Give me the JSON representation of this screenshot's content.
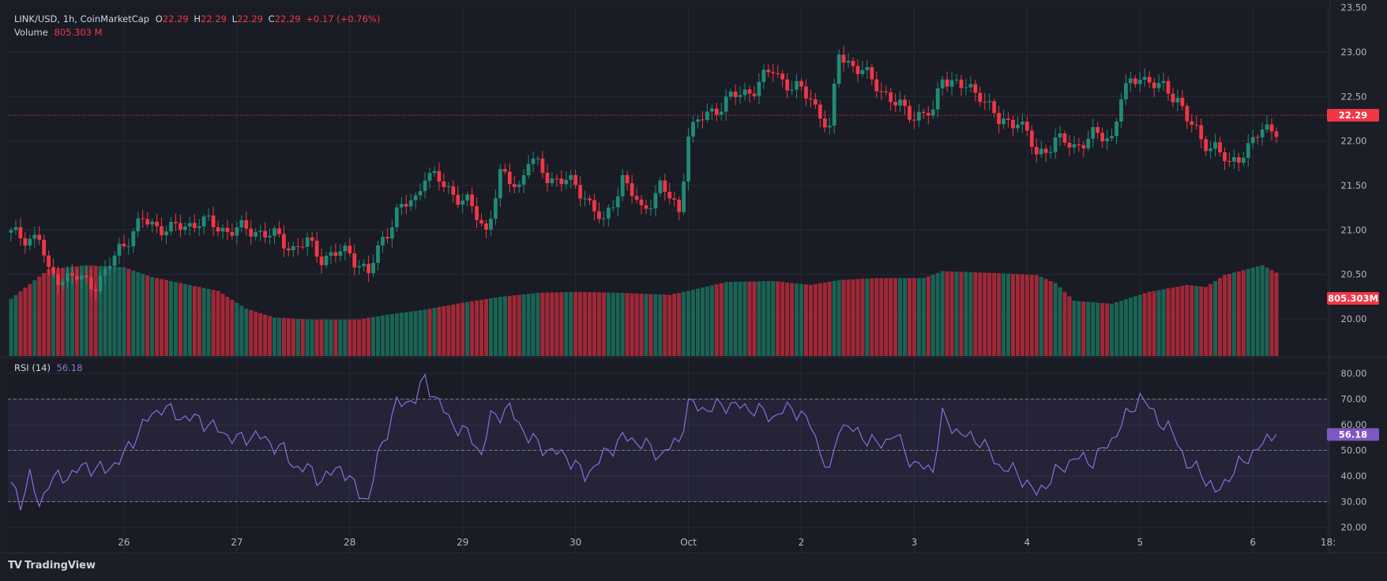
{
  "colors": {
    "background": "#1b1e27",
    "grid": "#262a35",
    "up": "#1f8b76",
    "down": "#f23645",
    "up_volume": "#1b6b5b",
    "down_volume": "#b02a3a",
    "rsi_line": "#8e6cd8",
    "rsi_band": "#7e57c2",
    "text": "#d1d4dc",
    "axis_text": "#b2b5be",
    "price_tag": "#f23645",
    "rsi_tag": "#7e57c2"
  },
  "legend": {
    "symbol": "LINK/USD, 1h, CoinMarketCap",
    "o_label": "O",
    "o_value": "22.29",
    "h_label": "H",
    "h_value": "22.29",
    "l_label": "L",
    "l_value": "22.29",
    "c_label": "C",
    "c_value": "22.29",
    "change": "+0.17 (+0.76%)",
    "volume_label": "Volume",
    "volume_value": "805.303 M",
    "rsi_label": "RSI (14)",
    "rsi_value": "56.18"
  },
  "tags": {
    "price": "22.29",
    "volume": "805.303M",
    "rsi": "56.18"
  },
  "brand": {
    "logo": "TV",
    "name": "TradingView"
  },
  "chart_data": [
    {
      "type": "candlestick",
      "title": "LINK/USD, 1h, CoinMarketCap",
      "ylim": [
        19.5,
        23.5
      ],
      "y_ticks": [
        "20.00",
        "20.50",
        "21.00",
        "21.50",
        "22.00",
        "22.50",
        "23.00",
        "23.50"
      ],
      "y_tick_values": [
        20.0,
        20.5,
        21.0,
        21.5,
        22.0,
        22.5,
        23.0,
        23.5
      ],
      "x_ticks": [
        "26",
        "27",
        "28",
        "29",
        "30",
        "Oct",
        "2",
        "3",
        "4",
        "5",
        "6",
        "18:"
      ],
      "x_tick_index": [
        24,
        48,
        72,
        96,
        120,
        144,
        168,
        192,
        216,
        240,
        264,
        280
      ],
      "current_price": 22.29,
      "anchors": [
        [
          0,
          20.95
        ],
        [
          6,
          20.9
        ],
        [
          8,
          20.5
        ],
        [
          14,
          20.45
        ],
        [
          18,
          20.4
        ],
        [
          20,
          20.5
        ],
        [
          23,
          20.8
        ],
        [
          28,
          21.1
        ],
        [
          34,
          21.0
        ],
        [
          40,
          21.1
        ],
        [
          46,
          21.0
        ],
        [
          52,
          21.0
        ],
        [
          57,
          20.9
        ],
        [
          60,
          20.8
        ],
        [
          63,
          20.85
        ],
        [
          66,
          20.7
        ],
        [
          72,
          20.75
        ],
        [
          76,
          20.5
        ],
        [
          79,
          20.9
        ],
        [
          82,
          21.2
        ],
        [
          86,
          21.35
        ],
        [
          88,
          21.65
        ],
        [
          92,
          21.5
        ],
        [
          97,
          21.3
        ],
        [
          101,
          21.0
        ],
        [
          104,
          21.6
        ],
        [
          108,
          21.5
        ],
        [
          110,
          21.8
        ],
        [
          114,
          21.6
        ],
        [
          118,
          21.55
        ],
        [
          122,
          21.4
        ],
        [
          126,
          21.05
        ],
        [
          130,
          21.6
        ],
        [
          134,
          21.2
        ],
        [
          138,
          21.5
        ],
        [
          142,
          21.2
        ],
        [
          144,
          22.1
        ],
        [
          148,
          22.3
        ],
        [
          152,
          22.45
        ],
        [
          158,
          22.6
        ],
        [
          162,
          22.8
        ],
        [
          166,
          22.6
        ],
        [
          170,
          22.5
        ],
        [
          174,
          22.1
        ],
        [
          176,
          23.0
        ],
        [
          180,
          22.8
        ],
        [
          184,
          22.65
        ],
        [
          188,
          22.4
        ],
        [
          192,
          22.3
        ],
        [
          196,
          22.3
        ],
        [
          198,
          22.75
        ],
        [
          202,
          22.6
        ],
        [
          206,
          22.55
        ],
        [
          210,
          22.2
        ],
        [
          214,
          22.25
        ],
        [
          218,
          21.85
        ],
        [
          222,
          22.0
        ],
        [
          226,
          21.95
        ],
        [
          230,
          22.05
        ],
        [
          234,
          22.05
        ],
        [
          236,
          22.5
        ],
        [
          240,
          22.75
        ],
        [
          244,
          22.6
        ],
        [
          248,
          22.5
        ],
        [
          250,
          22.25
        ],
        [
          253,
          22.0
        ],
        [
          256,
          21.95
        ],
        [
          259,
          21.7
        ],
        [
          262,
          21.9
        ],
        [
          266,
          22.1
        ],
        [
          268,
          22.15
        ]
      ],
      "volume": {
        "unit": "M",
        "ylim": [
          0,
          2000
        ],
        "last_value": 805.303,
        "anchors": [
          [
            0,
            580
          ],
          [
            8,
            880
          ],
          [
            16,
            920
          ],
          [
            24,
            900
          ],
          [
            30,
            800
          ],
          [
            38,
            720
          ],
          [
            44,
            660
          ],
          [
            50,
            480
          ],
          [
            56,
            390
          ],
          [
            64,
            370
          ],
          [
            74,
            370
          ],
          [
            80,
            420
          ],
          [
            88,
            470
          ],
          [
            96,
            540
          ],
          [
            104,
            600
          ],
          [
            112,
            640
          ],
          [
            120,
            650
          ],
          [
            130,
            640
          ],
          [
            140,
            620
          ],
          [
            144,
            660
          ],
          [
            152,
            750
          ],
          [
            162,
            760
          ],
          [
            170,
            720
          ],
          [
            176,
            770
          ],
          [
            184,
            790
          ],
          [
            194,
            790
          ],
          [
            198,
            860
          ],
          [
            210,
            840
          ],
          [
            218,
            820
          ],
          [
            222,
            740
          ],
          [
            226,
            560
          ],
          [
            234,
            530
          ],
          [
            242,
            650
          ],
          [
            250,
            720
          ],
          [
            254,
            700
          ],
          [
            258,
            820
          ],
          [
            266,
            920
          ],
          [
            270,
            820
          ]
        ]
      }
    },
    {
      "type": "line",
      "title": "RSI (14)",
      "ylim": [
        17.5,
        82.5
      ],
      "y_ticks": [
        "20.00",
        "30.00",
        "40.00",
        "50.00",
        "60.00",
        "70.00",
        "80.00"
      ],
      "y_tick_values": [
        20,
        30,
        40,
        50,
        60,
        70,
        80
      ],
      "bands": {
        "upper": 70,
        "middle": 50,
        "lower": 30
      },
      "last_value": 56.18,
      "anchors": [
        [
          0,
          36
        ],
        [
          2,
          30
        ],
        [
          4,
          40
        ],
        [
          6,
          28
        ],
        [
          8,
          38
        ],
        [
          12,
          40
        ],
        [
          16,
          44
        ],
        [
          20,
          42
        ],
        [
          24,
          48
        ],
        [
          28,
          60
        ],
        [
          32,
          67
        ],
        [
          36,
          63
        ],
        [
          40,
          62
        ],
        [
          44,
          58
        ],
        [
          48,
          54
        ],
        [
          52,
          56
        ],
        [
          56,
          52
        ],
        [
          58,
          50
        ],
        [
          60,
          44
        ],
        [
          64,
          42
        ],
        [
          66,
          38
        ],
        [
          70,
          44
        ],
        [
          72,
          38
        ],
        [
          76,
          30
        ],
        [
          78,
          48
        ],
        [
          82,
          68
        ],
        [
          86,
          70
        ],
        [
          88,
          78
        ],
        [
          90,
          71
        ],
        [
          94,
          60
        ],
        [
          98,
          55
        ],
        [
          100,
          48
        ],
        [
          102,
          63
        ],
        [
          106,
          66
        ],
        [
          110,
          55
        ],
        [
          114,
          50
        ],
        [
          118,
          48
        ],
        [
          122,
          40
        ],
        [
          126,
          48
        ],
        [
          130,
          55
        ],
        [
          134,
          53
        ],
        [
          138,
          48
        ],
        [
          142,
          54
        ],
        [
          144,
          68
        ],
        [
          148,
          66
        ],
        [
          152,
          68
        ],
        [
          158,
          66
        ],
        [
          162,
          63
        ],
        [
          166,
          67
        ],
        [
          170,
          60
        ],
        [
          174,
          40
        ],
        [
          176,
          60
        ],
        [
          180,
          57
        ],
        [
          184,
          52
        ],
        [
          188,
          56
        ],
        [
          192,
          44
        ],
        [
          196,
          43
        ],
        [
          198,
          63
        ],
        [
          202,
          56
        ],
        [
          206,
          54
        ],
        [
          210,
          44
        ],
        [
          214,
          41
        ],
        [
          218,
          33
        ],
        [
          222,
          41
        ],
        [
          226,
          47
        ],
        [
          230,
          46
        ],
        [
          234,
          54
        ],
        [
          236,
          60
        ],
        [
          240,
          71
        ],
        [
          244,
          62
        ],
        [
          248,
          54
        ],
        [
          250,
          44
        ],
        [
          253,
          42
        ],
        [
          256,
          33
        ],
        [
          259,
          40
        ],
        [
          262,
          46
        ],
        [
          266,
          52
        ],
        [
          268,
          56.18
        ]
      ]
    }
  ]
}
